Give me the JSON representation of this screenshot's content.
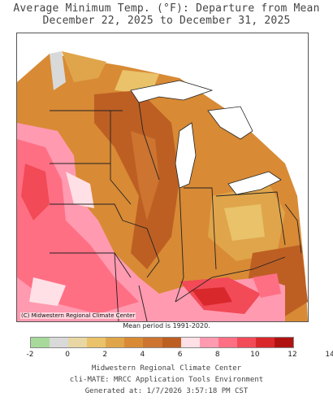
{
  "title_line1": "Average Minimum Temp. (°F): Departure from Mean",
  "title_line2": "December 22, 2025 to December 31, 2025",
  "map": {
    "credit": "(C) Midwestern Regional Climate Center",
    "region": "Midwest United States"
  },
  "mean_period": "Mean period is 1991-2020.",
  "legend": {
    "colors": [
      "#a6d99a",
      "#d9d9d9",
      "#e8d7a3",
      "#e9c26a",
      "#e0a54a",
      "#d88a35",
      "#cc7430",
      "#bd5f23",
      "#ffe0e6",
      "#ff9ab0",
      "#ff6f84",
      "#f24a57",
      "#d9282c",
      "#b01212"
    ],
    "ticks": [
      "-2",
      "0",
      "2",
      "4",
      "6",
      "8",
      "10",
      "12",
      "14"
    ]
  },
  "footer": {
    "line1": "Midwestern Regional Climate Center",
    "line2": "cli-MATE: MRCC Application Tools Environment",
    "line3": "Generated at: 1/7/2026 3:57:18 PM CST"
  }
}
